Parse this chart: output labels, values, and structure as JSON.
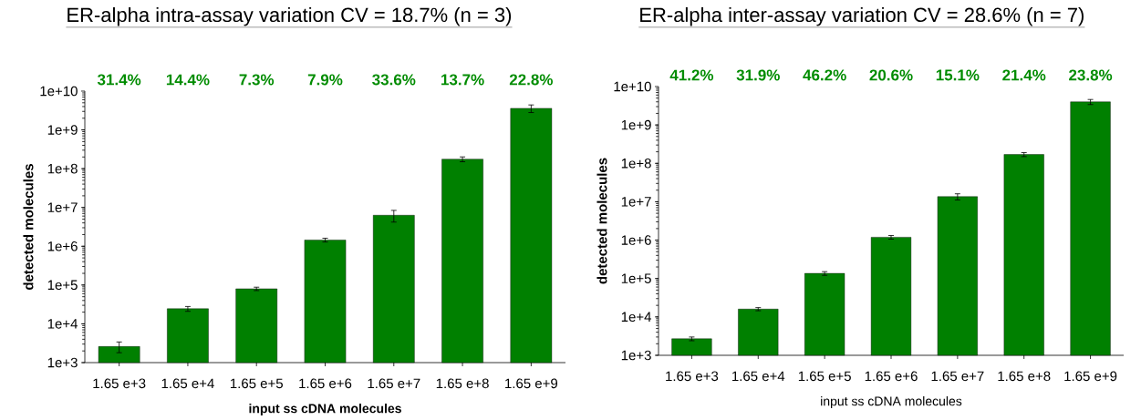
{
  "chart_data": [
    {
      "type": "bar",
      "title": "ER-alpha intra-assay variation CV = 18.7% (n = 3)",
      "xlabel": "input ss cDNA molecules",
      "ylabel": "detected molecules",
      "log": true,
      "color": "#008000",
      "categories": [
        "1.65 e+3",
        "1.65 e+4",
        "1.65 e+5",
        "1.65 e+6",
        "1.65 e+7",
        "1.65 e+8",
        "1.65 e+9"
      ],
      "values": [
        2600,
        24500,
        80000,
        1450000,
        6300000,
        176000000,
        3600000000
      ],
      "errors": [
        800,
        3500,
        8000,
        160000,
        2100000,
        25000000,
        800000000
      ],
      "ylim": [
        1000,
        10000000000
      ],
      "yticks": [
        {
          "value": 1000,
          "label": "1e+3"
        },
        {
          "value": 10000,
          "label": "1e+4"
        },
        {
          "value": 100000,
          "label": "1e+5"
        },
        {
          "value": 1000000,
          "label": "1e+6"
        },
        {
          "value": 10000000,
          "label": "1e+7"
        },
        {
          "value": 100000000,
          "label": "1e+8"
        },
        {
          "value": 1000000000,
          "label": "1e+9"
        },
        {
          "value": 10000000000,
          "label": "1e+10"
        }
      ],
      "annotations": [
        "31.4%",
        "14.4%",
        "7.3%",
        "7.9%",
        "33.6%",
        "13.7%",
        "22.8%"
      ]
    },
    {
      "type": "bar",
      "title": "ER-alpha inter-assay variation CV = 28.6% (n = 7)",
      "xlabel": "input ss cDNA molecules",
      "ylabel": "detected molecules",
      "log": true,
      "color": "#008000",
      "categories": [
        "1.65 e+3",
        "1.65 e+4",
        "1.65 e+5",
        "1.65 e+6",
        "1.65 e+7",
        "1.65 e+8",
        "1.65 e+9"
      ],
      "values": [
        2700,
        16000,
        136000,
        1190000,
        13600000,
        170000000,
        4000000000
      ],
      "errors": [
        300,
        1500,
        15000,
        130000,
        2500000,
        20000000,
        600000000
      ],
      "ylim": [
        1000,
        10000000000
      ],
      "yticks": [
        {
          "value": 1000,
          "label": "1e+3"
        },
        {
          "value": 10000,
          "label": "1e+4"
        },
        {
          "value": 100000,
          "label": "1e+5"
        },
        {
          "value": 1000000,
          "label": "1e+6"
        },
        {
          "value": 10000000,
          "label": "1e+7"
        },
        {
          "value": 100000000,
          "label": "1e+8"
        },
        {
          "value": 1000000000,
          "label": "1e+9"
        },
        {
          "value": 10000000000,
          "label": "1e+10"
        }
      ],
      "annotations": [
        "41.2%",
        "31.9%",
        "46.2%",
        "20.6%",
        "15.1%",
        "21.4%",
        "23.8%"
      ]
    }
  ]
}
